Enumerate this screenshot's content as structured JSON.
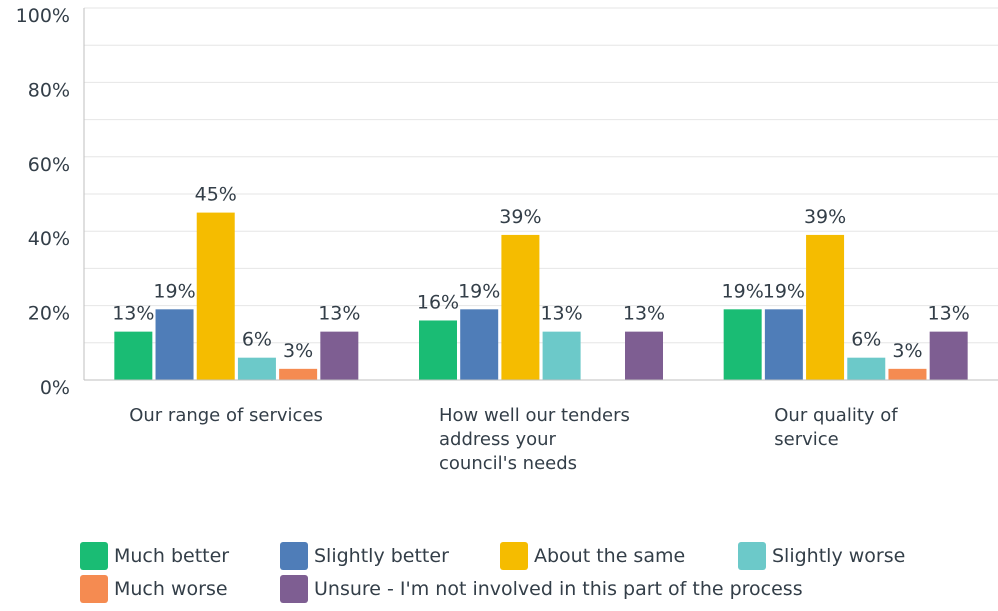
{
  "chart_data": {
    "type": "bar",
    "categories": [
      "Our range of services",
      "How well our tenders address your council's needs",
      "Our quality of service"
    ],
    "series": [
      {
        "name": "Much better",
        "values": [
          13,
          16,
          19
        ],
        "labels": [
          "13%",
          "16%",
          "19%"
        ]
      },
      {
        "name": "Slightly better",
        "values": [
          19,
          19,
          19
        ],
        "labels": [
          "19%",
          "19%",
          "19%"
        ]
      },
      {
        "name": "About the same",
        "values": [
          45,
          39,
          39
        ],
        "labels": [
          "45%",
          "39%",
          "39%"
        ]
      },
      {
        "name": "Slightly worse",
        "values": [
          6,
          13,
          6
        ],
        "labels": [
          "6%",
          "13%",
          "6%"
        ]
      },
      {
        "name": "Much worse",
        "values": [
          3,
          0,
          3
        ],
        "labels": [
          "3%",
          "",
          "3%"
        ]
      },
      {
        "name": "Unsure - I'm not involved in this part of the process",
        "values": [
          13,
          13,
          13
        ],
        "labels": [
          "13%",
          "13%",
          "13%"
        ]
      }
    ],
    "yticks": [
      "0%",
      "20%",
      "40%",
      "60%",
      "80%",
      "100%"
    ],
    "ylim": [
      0,
      100
    ],
    "grid": true,
    "legend_position": "bottom"
  },
  "colors": {
    "series": [
      "#1abc74",
      "#4f7db8",
      "#f5bc00",
      "#6cc9c9",
      "#f58b51",
      "#7e5e92"
    ],
    "grid": "#e6e6e6",
    "axis": "#bfbfbf",
    "text": "#333e48"
  }
}
